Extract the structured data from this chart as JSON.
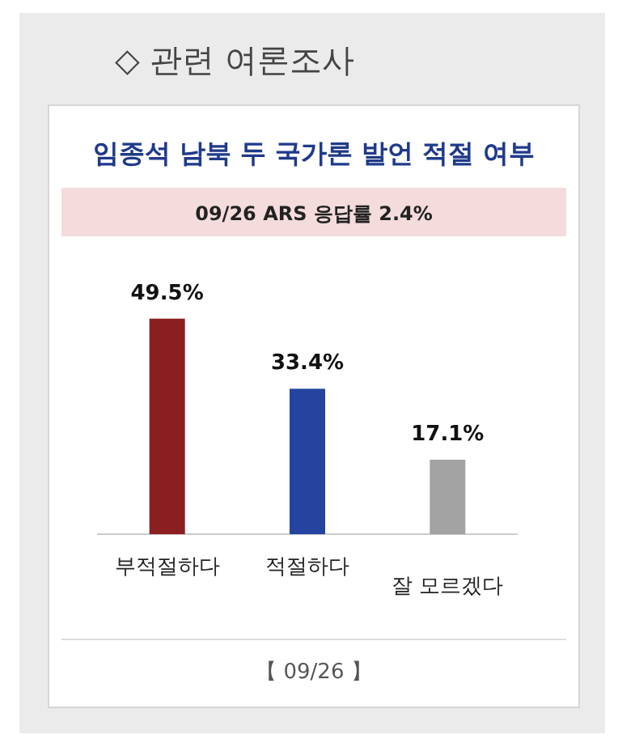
{
  "chart_data": {
    "type": "bar",
    "title": "임종석 남북 두 국가론 발언 적절 여부",
    "subtitle": "09/26 ARS 응답률 2.4%",
    "categories": [
      "부적절하다",
      "적절하다",
      "잘 모르겠다"
    ],
    "values": [
      49.5,
      33.4,
      17.1
    ],
    "colors": [
      "#8b1f1f",
      "#2544a0",
      "#a3a3a3"
    ],
    "value_labels": [
      "49.5%",
      "33.4%",
      "17.1%"
    ],
    "annotations": [
      "◇ 관련 여론조사",
      "【 09/26 】"
    ]
  }
}
